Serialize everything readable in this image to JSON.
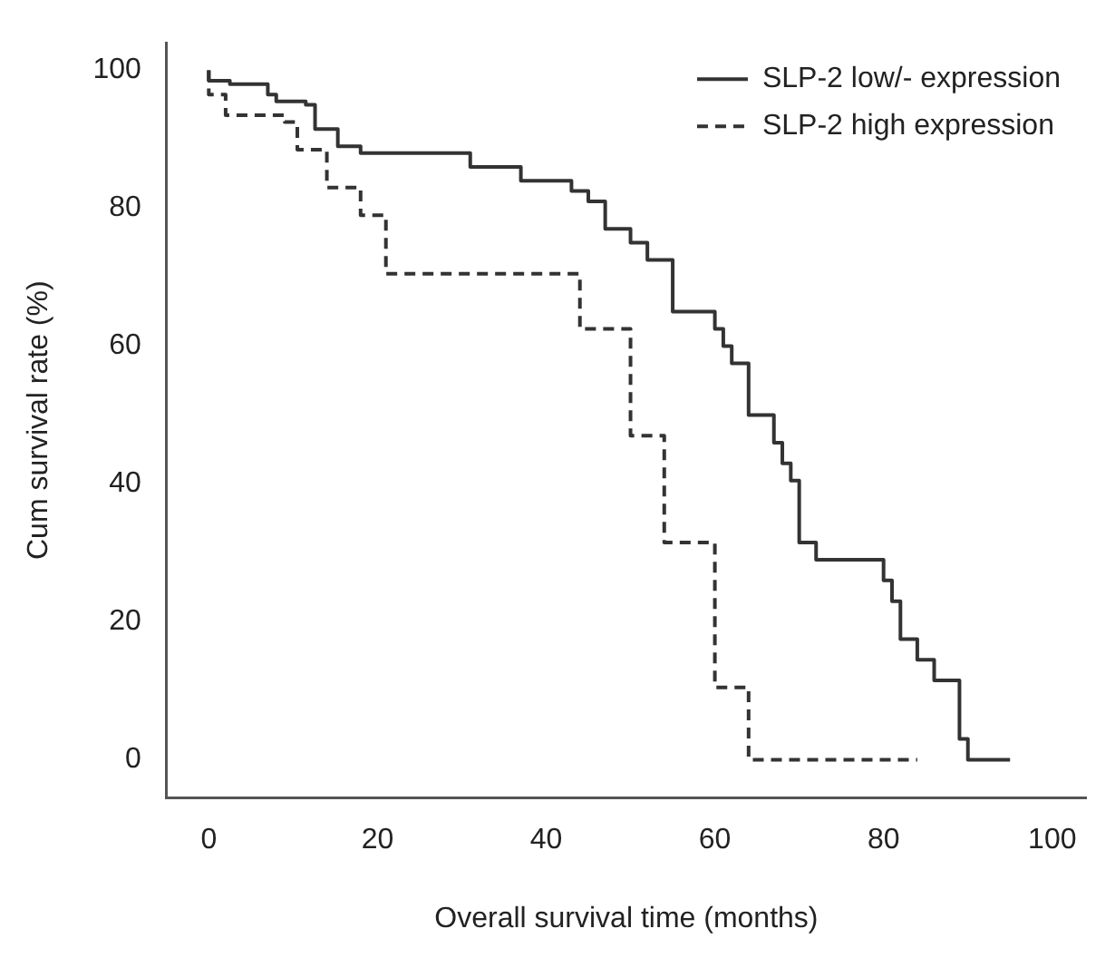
{
  "chart_data": {
    "type": "step",
    "xlabel": "Overall survival time (months)",
    "ylabel": "Cum survival rate (%)",
    "xlim": [
      -5,
      104
    ],
    "ylim": [
      -5.5,
      104
    ],
    "xticks": [
      0,
      20,
      40,
      60,
      80,
      100
    ],
    "yticks": [
      0,
      20,
      40,
      60,
      80,
      100
    ],
    "grid": false,
    "legend": "top right",
    "marker": "none",
    "series": [
      {
        "name": "SLP-2 low/- expression",
        "color": "#333333",
        "line_style": "solid",
        "x": [
          0,
          2.5,
          7,
          8,
          11.5,
          12.6,
          15.3,
          18,
          31,
          37,
          43,
          45,
          47,
          50,
          52,
          55,
          60,
          61,
          62,
          64,
          67,
          68,
          69,
          70,
          72,
          80,
          81,
          82,
          84,
          86,
          89,
          90,
          95,
          95
        ],
        "values": [
          100,
          98.5,
          98,
          96.5,
          95.5,
          95,
          91.5,
          89,
          88,
          86,
          84,
          82.5,
          81,
          77,
          75,
          72.5,
          65,
          62.5,
          60,
          57.5,
          50,
          46,
          43,
          40.5,
          31.5,
          29,
          26,
          23,
          17.5,
          14.5,
          11.5,
          3,
          0,
          0
        ]
      },
      {
        "name": "SLP-2 high expression",
        "color": "#333333",
        "line_style": "dashed",
        "x": [
          0,
          2,
          9,
          10.5,
          14,
          18,
          21,
          44,
          50,
          54,
          60,
          64,
          84,
          84
        ],
        "values": [
          100,
          96.5,
          93.5,
          92.5,
          88.5,
          83,
          79,
          70.5,
          62.5,
          47,
          31.5,
          10.5,
          0,
          0
        ]
      }
    ]
  }
}
